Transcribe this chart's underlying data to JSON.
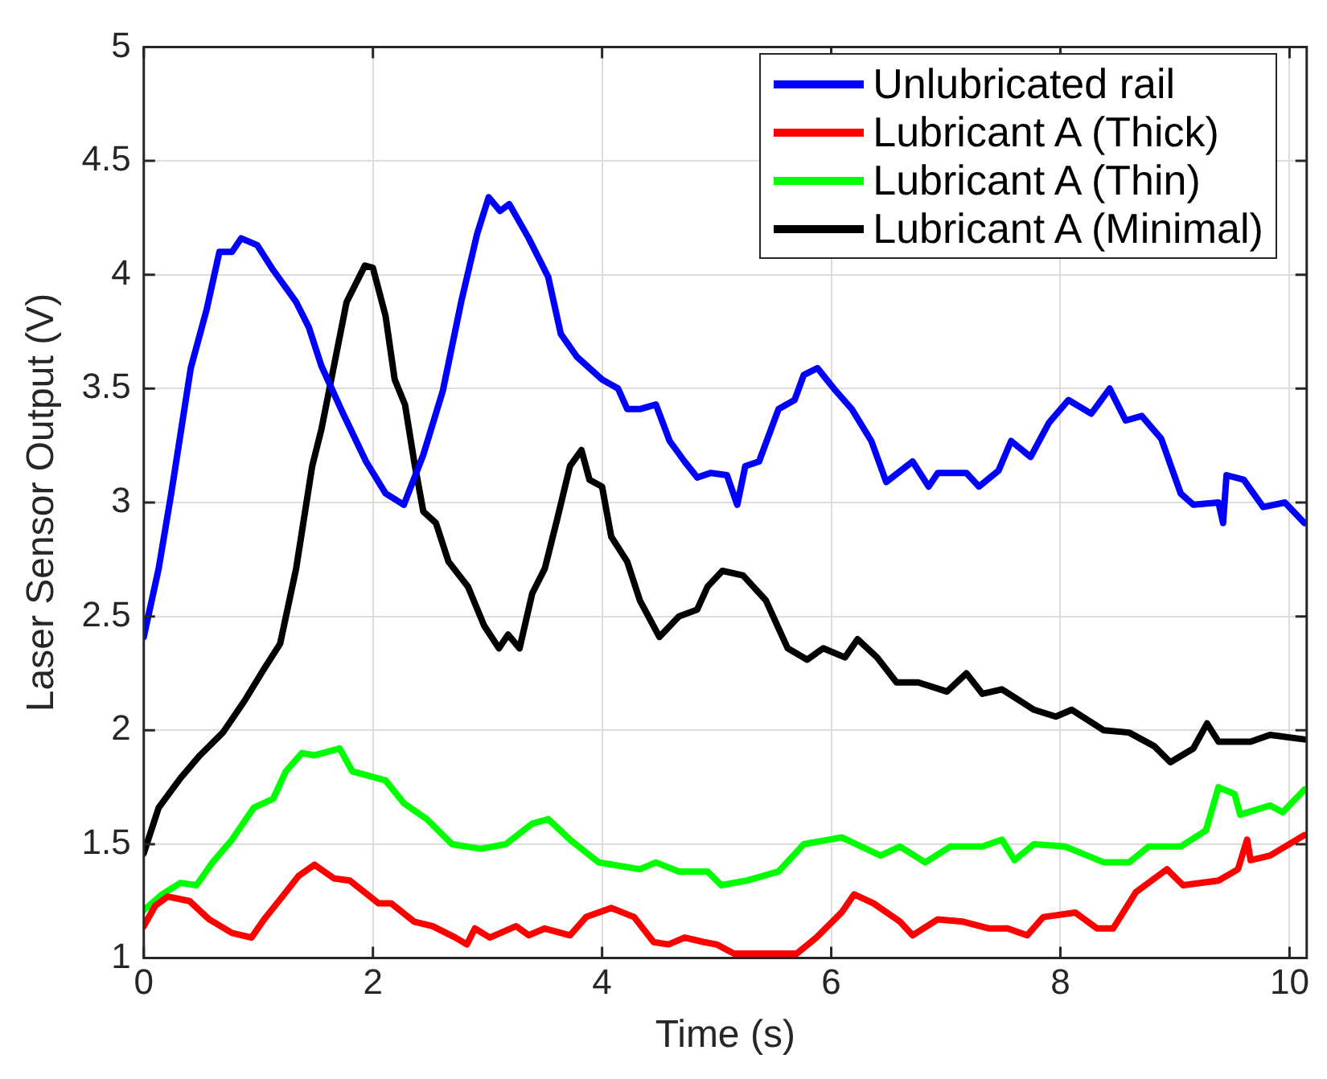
{
  "chart_data": {
    "type": "line",
    "xlabel": "Time (s)",
    "ylabel": "Laser Sensor Output (V)",
    "xlim": [
      0,
      10.15
    ],
    "ylim": [
      1,
      5
    ],
    "xticks": [
      0,
      2,
      4,
      6,
      8,
      10
    ],
    "yticks": [
      1,
      1.5,
      2,
      2.5,
      3,
      3.5,
      4,
      4.5,
      5
    ],
    "grid": true,
    "legend": "top right",
    "marker": "none",
    "line_style": "solid",
    "series": [
      {
        "name": "Unlubricated rail",
        "color": "#0000ff",
        "x": [
          0,
          0.13,
          0.24,
          0.41,
          0.55,
          0.66,
          0.77,
          0.85,
          0.99,
          1.13,
          1.33,
          1.44,
          1.55,
          1.74,
          1.94,
          2.11,
          2.27,
          2.44,
          2.61,
          2.77,
          2.91,
          3.01,
          3.11,
          3.19,
          3.36,
          3.53,
          3.64,
          3.78,
          4.0,
          4.14,
          4.22,
          4.33,
          4.47,
          4.59,
          4.72,
          4.83,
          4.95,
          5.09,
          5.18,
          5.25,
          5.37,
          5.54,
          5.68,
          5.76,
          5.88,
          6.04,
          6.18,
          6.35,
          6.48,
          6.71,
          6.85,
          6.93,
          7.18,
          7.29,
          7.46,
          7.57,
          7.74,
          7.9,
          8.07,
          8.27,
          8.43,
          8.57,
          8.71,
          8.88,
          9.05,
          9.16,
          9.38,
          9.42,
          9.45,
          9.6,
          9.77,
          9.96,
          10.13
        ],
        "values": [
          2.41,
          2.71,
          3.04,
          3.59,
          3.85,
          4.1,
          4.1,
          4.16,
          4.13,
          4.02,
          3.88,
          3.77,
          3.6,
          3.39,
          3.18,
          3.04,
          2.99,
          3.21,
          3.49,
          3.88,
          4.18,
          4.34,
          4.28,
          4.31,
          4.16,
          3.99,
          3.74,
          3.64,
          3.54,
          3.5,
          3.41,
          3.41,
          3.43,
          3.27,
          3.18,
          3.11,
          3.13,
          3.12,
          2.99,
          3.16,
          3.18,
          3.41,
          3.45,
          3.56,
          3.59,
          3.49,
          3.41,
          3.27,
          3.09,
          3.18,
          3.07,
          3.13,
          3.13,
          3.07,
          3.14,
          3.27,
          3.2,
          3.35,
          3.45,
          3.39,
          3.5,
          3.36,
          3.38,
          3.28,
          3.04,
          2.99,
          3.0,
          2.91,
          3.12,
          3.1,
          2.98,
          3.0,
          2.91
        ]
      },
      {
        "name": "Lubricant A (Thick)",
        "color": "#ff0000",
        "x": [
          0,
          0.1,
          0.21,
          0.4,
          0.57,
          0.77,
          0.94,
          1.05,
          1.21,
          1.35,
          1.49,
          1.66,
          1.8,
          2.05,
          2.16,
          2.36,
          2.52,
          2.72,
          2.82,
          2.89,
          3.02,
          3.25,
          3.36,
          3.5,
          3.72,
          3.86,
          4.08,
          4.28,
          4.45,
          4.58,
          4.72,
          4.89,
          5.0,
          5.15,
          5.37,
          5.7,
          5.87,
          6.09,
          6.2,
          6.37,
          6.6,
          6.71,
          6.93,
          7.15,
          7.38,
          7.54,
          7.71,
          7.85,
          8.13,
          8.32,
          8.46,
          8.66,
          8.93,
          9.07,
          9.38,
          9.55,
          9.63,
          9.66,
          9.83,
          10.13
        ],
        "values": [
          1.14,
          1.23,
          1.27,
          1.25,
          1.17,
          1.11,
          1.09,
          1.17,
          1.27,
          1.36,
          1.41,
          1.35,
          1.34,
          1.24,
          1.24,
          1.16,
          1.14,
          1.09,
          1.06,
          1.13,
          1.09,
          1.14,
          1.1,
          1.13,
          1.1,
          1.18,
          1.22,
          1.18,
          1.07,
          1.06,
          1.09,
          1.07,
          1.06,
          1.02,
          1.02,
          1.02,
          1.09,
          1.2,
          1.28,
          1.24,
          1.16,
          1.1,
          1.17,
          1.16,
          1.13,
          1.13,
          1.1,
          1.18,
          1.2,
          1.13,
          1.13,
          1.29,
          1.39,
          1.32,
          1.34,
          1.39,
          1.52,
          1.43,
          1.45,
          1.54
        ]
      },
      {
        "name": "Lubricant A (Thin)",
        "color": "#00ff00",
        "x": [
          0,
          0.16,
          0.32,
          0.46,
          0.6,
          0.77,
          0.96,
          1.13,
          1.24,
          1.38,
          1.49,
          1.71,
          1.82,
          2.11,
          2.27,
          2.47,
          2.69,
          2.94,
          3.16,
          3.39,
          3.53,
          3.72,
          3.97,
          4.33,
          4.47,
          4.67,
          4.92,
          5.04,
          5.26,
          5.54,
          5.76,
          6.09,
          6.43,
          6.6,
          6.82,
          7.04,
          7.32,
          7.49,
          7.6,
          7.77,
          8.04,
          8.38,
          8.6,
          8.77,
          9.05,
          9.27,
          9.38,
          9.52,
          9.57,
          9.83,
          9.94,
          10.13
        ],
        "values": [
          1.21,
          1.28,
          1.33,
          1.32,
          1.42,
          1.52,
          1.66,
          1.7,
          1.82,
          1.9,
          1.89,
          1.92,
          1.82,
          1.78,
          1.68,
          1.61,
          1.5,
          1.48,
          1.5,
          1.59,
          1.61,
          1.52,
          1.42,
          1.39,
          1.42,
          1.38,
          1.38,
          1.32,
          1.34,
          1.38,
          1.5,
          1.53,
          1.45,
          1.49,
          1.42,
          1.49,
          1.49,
          1.52,
          1.43,
          1.5,
          1.49,
          1.42,
          1.42,
          1.49,
          1.49,
          1.56,
          1.75,
          1.72,
          1.63,
          1.67,
          1.64,
          1.74
        ]
      },
      {
        "name": "Lubricant A (Minimal)",
        "color": "#000000",
        "x": [
          0,
          0.13,
          0.32,
          0.49,
          0.69,
          0.88,
          1.05,
          1.19,
          1.33,
          1.47,
          1.55,
          1.66,
          1.77,
          1.93,
          2.0,
          2.11,
          2.19,
          2.28,
          2.36,
          2.44,
          2.55,
          2.66,
          2.83,
          2.97,
          3.1,
          3.18,
          3.28,
          3.39,
          3.5,
          3.61,
          3.72,
          3.82,
          3.89,
          4.0,
          4.08,
          4.22,
          4.33,
          4.5,
          4.67,
          4.83,
          4.92,
          5.05,
          5.23,
          5.43,
          5.62,
          5.79,
          5.93,
          6.12,
          6.23,
          6.4,
          6.57,
          6.76,
          7.01,
          7.18,
          7.32,
          7.49,
          7.77,
          7.96,
          8.1,
          8.38,
          8.6,
          8.82,
          8.96,
          9.16,
          9.28,
          9.38,
          9.66,
          9.83,
          10.13
        ],
        "values": [
          1.46,
          1.66,
          1.79,
          1.89,
          1.99,
          2.13,
          2.27,
          2.38,
          2.71,
          3.16,
          3.32,
          3.6,
          3.88,
          4.04,
          4.03,
          3.82,
          3.54,
          3.43,
          3.18,
          2.96,
          2.91,
          2.74,
          2.63,
          2.46,
          2.36,
          2.42,
          2.36,
          2.6,
          2.71,
          2.93,
          3.16,
          3.23,
          3.1,
          3.07,
          2.85,
          2.74,
          2.57,
          2.41,
          2.5,
          2.53,
          2.63,
          2.7,
          2.68,
          2.57,
          2.36,
          2.31,
          2.36,
          2.32,
          2.4,
          2.32,
          2.21,
          2.21,
          2.17,
          2.25,
          2.16,
          2.18,
          2.09,
          2.06,
          2.09,
          2.0,
          1.99,
          1.93,
          1.86,
          1.92,
          2.03,
          1.95,
          1.95,
          1.98,
          1.96
        ]
      }
    ]
  }
}
